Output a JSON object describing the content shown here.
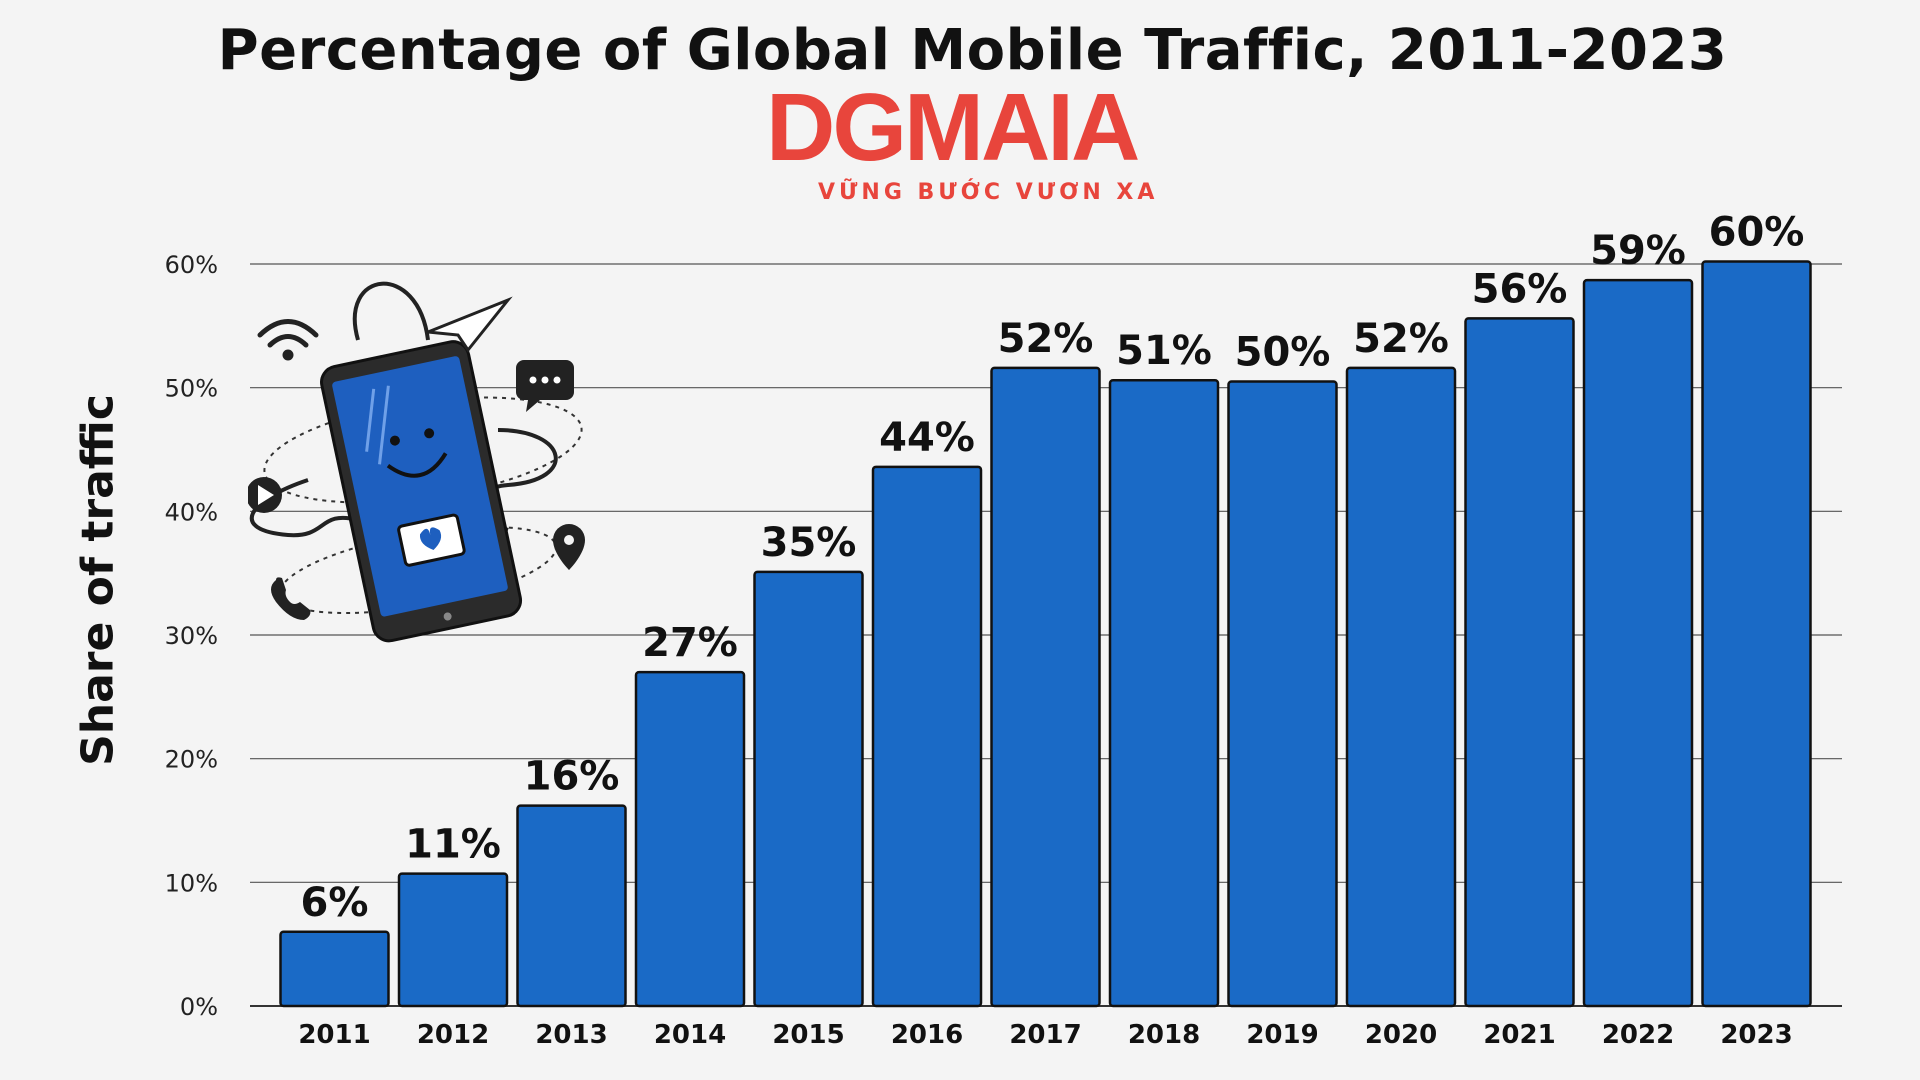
{
  "chart_data": {
    "type": "bar",
    "title": "Percentage of Global Mobile Traffic, 2011-2023",
    "ylabel": "Share of traffic",
    "xlabel": "",
    "categories": [
      "2011",
      "2012",
      "2013",
      "2014",
      "2015",
      "2016",
      "2017",
      "2018",
      "2019",
      "2020",
      "2021",
      "2022",
      "2023"
    ],
    "values": [
      6,
      10.7,
      16.2,
      27,
      35.1,
      43.6,
      51.6,
      50.6,
      50.5,
      51.6,
      55.6,
      58.7,
      60.2
    ],
    "data_labels": [
      "6%",
      "11%",
      "16%",
      "27%",
      "35%",
      "44%",
      "52%",
      "51%",
      "50%",
      "52%",
      "56%",
      "59%",
      "60%"
    ],
    "yticks": [
      "0%",
      "10%",
      "20%",
      "30%",
      "40%",
      "50%",
      "60%"
    ],
    "ytick_values": [
      0,
      10,
      20,
      30,
      40,
      50,
      60
    ],
    "ylim": [
      0,
      60
    ],
    "grid": true,
    "legend": "none",
    "bar_color": "#1a6ac6",
    "bar_edge_color": "#111111"
  },
  "logo": {
    "text": "DGMAIA",
    "tagline": "VỮNG BƯỚC VƯƠN XA",
    "color": "#e8453c"
  },
  "illustration": {
    "icon": "smartphone-social-icons"
  }
}
